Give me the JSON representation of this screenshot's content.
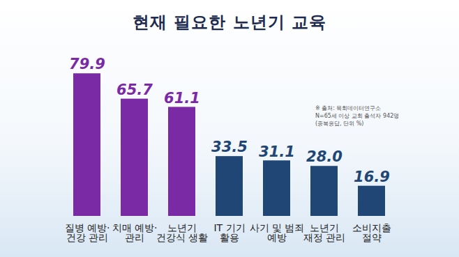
{
  "chart_data": {
    "type": "bar",
    "title": "현재 필요한 노년기 교육",
    "categories": [
      "질병 예방·\n건강 관리",
      "치매 예방·\n관리",
      "노년기\n건강식 생활",
      "IT 기기\n활용",
      "사기 및 범죄\n예방",
      "노년기\n재정 관리",
      "소비지출\n절약"
    ],
    "values": [
      79.9,
      65.7,
      61.1,
      33.5,
      31.1,
      28.0,
      16.9
    ],
    "value_labels": [
      "79.9",
      "65.7",
      "61.1",
      "33.5",
      "31.1",
      "28.0",
      "16.9"
    ],
    "colors": [
      "#7b2aa6",
      "#7b2aa6",
      "#7b2aa6",
      "#1f4674",
      "#1f4674",
      "#1f4674",
      "#1f4674"
    ],
    "ylim": [
      0,
      80
    ],
    "data_labels": true,
    "tick_labels": "x",
    "annotations": [
      "※ 출처: 목회데이터연구소",
      "N=65세 이상 교회 출석자 942명",
      "(중복응답, 단위 %)"
    ]
  }
}
